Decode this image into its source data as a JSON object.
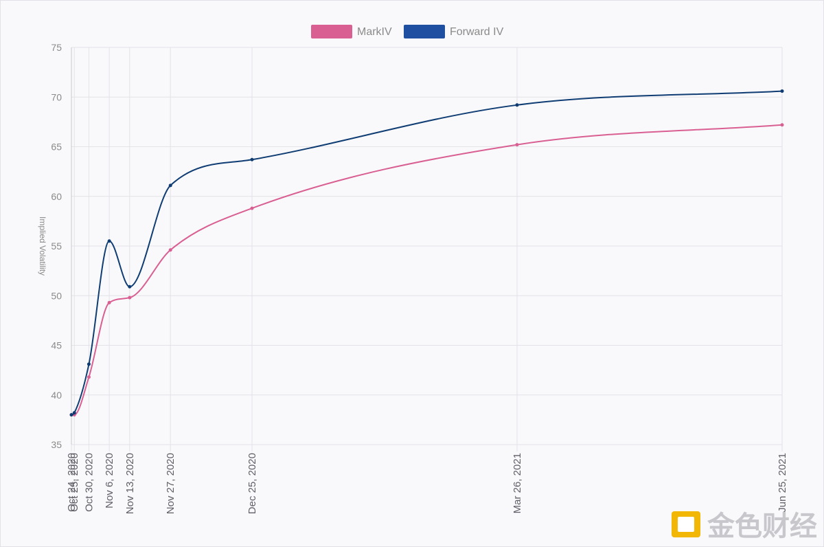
{
  "chart_data": {
    "type": "line",
    "ylabel": "Implied Volatility",
    "xlabel": "",
    "ylim": [
      35,
      75
    ],
    "yticks": [
      35,
      40,
      45,
      50,
      55,
      60,
      65,
      70,
      75
    ],
    "grid": true,
    "legend_position": "top-center",
    "x_categories": [
      "Oct 24, 2020",
      "Oct 25, 2020",
      "Oct 30, 2020",
      "Nov 6, 2020",
      "Nov 13, 2020",
      "Nov 27, 2020",
      "Dec 25, 2020",
      "Mar 26, 2021",
      "Jun 25, 2021"
    ],
    "x_days": [
      0,
      1,
      6,
      13,
      20,
      34,
      62,
      153,
      244
    ],
    "series": [
      {
        "name": "MarkIV",
        "color": "#d95f93",
        "values": [
          38.0,
          38.0,
          41.8,
          49.3,
          49.8,
          54.6,
          58.8,
          65.2,
          67.2
        ]
      },
      {
        "name": "Forward IV",
        "color": "#0f3d73",
        "legend_color": "#1f4fa0",
        "values": [
          38.0,
          38.2,
          43.1,
          55.5,
          50.9,
          61.1,
          63.7,
          69.2,
          70.6
        ]
      }
    ]
  },
  "watermark": {
    "text": "金色财经",
    "logo_color": "#f2b705"
  }
}
